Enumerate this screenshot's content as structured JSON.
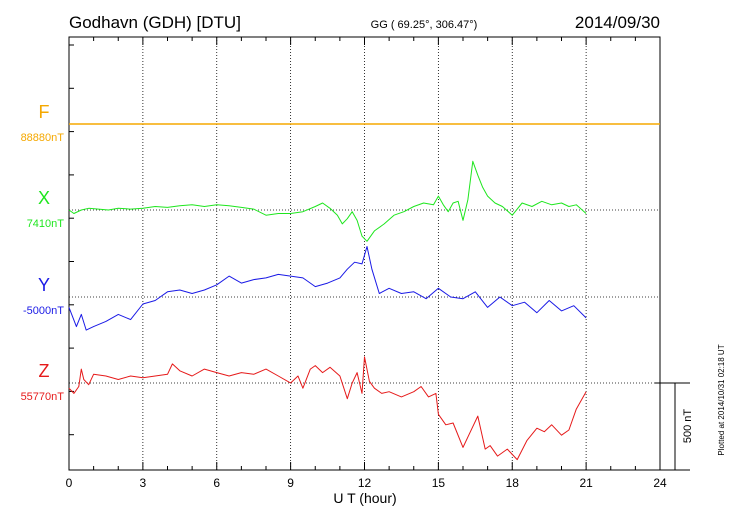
{
  "header": {
    "station": "Godhavn (GDH)  [DTU]",
    "coords": "GG ( 69.25°, 306.47°)",
    "date": "2014/09/30"
  },
  "side_note": "Plotted at 2014/10/31 02:18 UT",
  "scale_bar": {
    "label": "500 nT",
    "value_nT": 500
  },
  "chart_data": {
    "type": "line",
    "title": "",
    "xlabel": "U T (hour)",
    "ylabel": "",
    "xlim": [
      0,
      24
    ],
    "xticks": [
      0,
      3,
      6,
      9,
      12,
      15,
      18,
      21,
      24
    ],
    "xtick_labels": [
      "0",
      "3",
      "6",
      "9",
      "12",
      "15",
      "18",
      "21",
      "24"
    ],
    "grid": true,
    "y_unit": "nT",
    "series": [
      {
        "name": "F",
        "baseline_label": "88880nT",
        "baseline_nT": 88880,
        "color": "#f5a800",
        "x": [
          0,
          24
        ],
        "y": [
          0,
          0
        ]
      },
      {
        "name": "X",
        "baseline_label": "7410nT",
        "baseline_nT": 7410,
        "color": "#1ee61e",
        "x": [
          0,
          0.2,
          0.5,
          0.8,
          1.2,
          1.6,
          2,
          2.5,
          3,
          3.5,
          4,
          4.5,
          5,
          5.5,
          6,
          6.5,
          7,
          7.5,
          8,
          8.5,
          9,
          9.5,
          10,
          10.3,
          10.6,
          10.9,
          11.1,
          11.3,
          11.5,
          11.7,
          11.9,
          12.1,
          12.4,
          12.8,
          13.2,
          13.6,
          14,
          14.4,
          14.8,
          15,
          15.2,
          15.4,
          15.6,
          15.8,
          16,
          16.2,
          16.4,
          16.6,
          16.8,
          17,
          17.3,
          17.6,
          18,
          18.4,
          18.8,
          19.2,
          19.6,
          20,
          20.3,
          20.6,
          21
        ],
        "y": [
          0,
          -20,
          0,
          10,
          5,
          0,
          10,
          5,
          10,
          20,
          15,
          25,
          30,
          20,
          30,
          25,
          15,
          5,
          -30,
          -20,
          -20,
          -10,
          20,
          40,
          10,
          -30,
          -80,
          -50,
          -10,
          -60,
          -150,
          -180,
          -120,
          -80,
          -30,
          -10,
          20,
          40,
          30,
          80,
          30,
          -10,
          40,
          50,
          -60,
          60,
          280,
          200,
          130,
          80,
          40,
          20,
          -30,
          40,
          20,
          50,
          30,
          40,
          20,
          30,
          -20
        ]
      },
      {
        "name": "Y",
        "baseline_label": "-5000nT",
        "baseline_nT": -5000,
        "color": "#1a1ae6",
        "x": [
          0,
          0.3,
          0.5,
          0.7,
          1,
          1.5,
          2,
          2.5,
          3,
          3.5,
          4,
          4.5,
          5,
          5.5,
          6,
          6.5,
          7,
          7.5,
          8,
          8.5,
          9,
          9.5,
          10,
          10.5,
          11,
          11.3,
          11.6,
          11.9,
          12.1,
          12.3,
          12.6,
          13,
          13.5,
          14,
          14.5,
          15,
          15.5,
          16,
          16.5,
          17,
          17.5,
          18,
          18.5,
          19,
          19.5,
          20,
          20.5,
          21
        ],
        "y": [
          -60,
          -170,
          -100,
          -190,
          -170,
          -140,
          -100,
          -130,
          -40,
          -20,
          30,
          40,
          20,
          40,
          70,
          120,
          80,
          100,
          110,
          130,
          120,
          110,
          60,
          80,
          110,
          160,
          200,
          190,
          290,
          160,
          20,
          50,
          20,
          30,
          -10,
          50,
          0,
          -10,
          30,
          -60,
          0,
          -50,
          -30,
          -90,
          -20,
          -80,
          -50,
          -120
        ]
      },
      {
        "name": "Z",
        "baseline_label": "55770nT",
        "baseline_nT": 55770,
        "color": "#e61a1a",
        "x": [
          0,
          0.2,
          0.4,
          0.5,
          0.6,
          0.8,
          1,
          1.5,
          2,
          2.5,
          3,
          3.5,
          4,
          4.2,
          4.5,
          5,
          5.5,
          6,
          6.5,
          7,
          7.5,
          8,
          8.5,
          9,
          9.3,
          9.5,
          9.8,
          10,
          10.3,
          10.6,
          11,
          11.3,
          11.5,
          11.7,
          11.9,
          12,
          12.2,
          12.4,
          12.7,
          13,
          13.5,
          14,
          14.3,
          14.6,
          14.9,
          15,
          15.3,
          15.6,
          16,
          16.3,
          16.6,
          16.9,
          17.1,
          17.4,
          17.8,
          18.2,
          18.6,
          19,
          19.3,
          19.6,
          20,
          20.3,
          20.6,
          21
        ],
        "y": [
          -30,
          -60,
          -20,
          80,
          20,
          -10,
          50,
          40,
          20,
          40,
          30,
          40,
          50,
          110,
          70,
          40,
          80,
          60,
          40,
          60,
          50,
          80,
          40,
          0,
          40,
          -30,
          80,
          100,
          60,
          90,
          40,
          -90,
          0,
          60,
          -60,
          150,
          10,
          -30,
          -60,
          -50,
          -80,
          -50,
          -20,
          -80,
          -60,
          -180,
          -240,
          -230,
          -370,
          -280,
          -190,
          -380,
          -360,
          -420,
          -380,
          -440,
          -330,
          -260,
          -280,
          -240,
          -300,
          -270,
          -150,
          -50
        ]
      }
    ]
  }
}
